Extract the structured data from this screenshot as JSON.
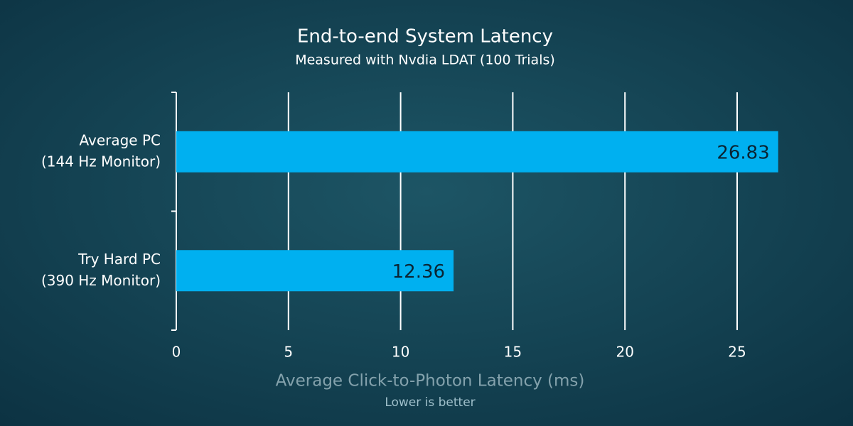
{
  "chart_data": {
    "type": "barh",
    "title": "End-to-end System Latency",
    "subtitle": "Measured with Nvdia LDAT (100 Trials)",
    "categories": [
      [
        "Average PC",
        "(144 Hz Monitor)"
      ],
      [
        "Try Hard PC",
        "(390 Hz Monitor)"
      ]
    ],
    "values": [
      26.83,
      12.36
    ],
    "color": "#00b0f0",
    "xlabel": "Average Click-to-Photon Latency (ms)",
    "note": "Lower is better",
    "xlim": [
      0,
      27
    ],
    "xticks": [
      0,
      5,
      10,
      15,
      20,
      25
    ],
    "grid": true
  }
}
